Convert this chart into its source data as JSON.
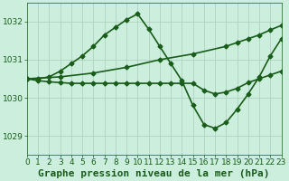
{
  "title": "Graphe pression niveau de la mer (hPa)",
  "bg_color": "#cceedd",
  "grid_color": "#aaccbb",
  "line_color": "#1a5c1a",
  "xlim": [
    0,
    23
  ],
  "ylim": [
    1028.5,
    1032.5
  ],
  "yticks": [
    1029,
    1030,
    1031,
    1032
  ],
  "xticks": [
    0,
    1,
    2,
    3,
    4,
    5,
    6,
    7,
    8,
    9,
    10,
    11,
    12,
    13,
    14,
    15,
    16,
    17,
    18,
    19,
    20,
    21,
    22,
    23
  ],
  "series": [
    {
      "x": [
        0,
        1,
        2,
        3,
        4,
        5,
        6,
        7,
        8,
        9,
        10,
        11,
        12,
        13,
        14,
        15,
        16,
        17,
        18,
        19,
        20,
        21,
        22,
        23
      ],
      "y": [
        1030.5,
        1030.5,
        1030.55,
        1030.7,
        1030.9,
        1031.1,
        1031.35,
        1031.65,
        1031.85,
        1032.05,
        1032.2,
        1031.8,
        1031.35,
        1030.9,
        1030.45,
        1029.8,
        1029.3,
        1029.2,
        1029.35,
        1029.7,
        1030.1,
        1030.55,
        1031.1,
        1031.55
      ]
    },
    {
      "x": [
        0,
        3,
        6,
        9,
        12,
        15,
        18,
        19,
        20,
        21,
        22,
        23
      ],
      "y": [
        1030.5,
        1030.55,
        1030.65,
        1030.8,
        1031.0,
        1031.15,
        1031.35,
        1031.45,
        1031.55,
        1031.65,
        1031.78,
        1031.9
      ]
    },
    {
      "x": [
        0,
        1,
        2,
        3,
        4,
        5,
        6,
        7,
        8,
        9,
        10,
        11,
        12,
        13,
        14,
        15,
        16,
        17,
        18,
        19,
        20,
        21,
        22,
        23
      ],
      "y": [
        1030.5,
        1030.45,
        1030.42,
        1030.4,
        1030.38,
        1030.38,
        1030.38,
        1030.38,
        1030.38,
        1030.38,
        1030.38,
        1030.38,
        1030.38,
        1030.38,
        1030.38,
        1030.38,
        1030.2,
        1030.1,
        1030.15,
        1030.25,
        1030.4,
        1030.5,
        1030.6,
        1030.7
      ]
    }
  ],
  "title_fontsize": 8,
  "tick_fontsize": 6.5,
  "title_color": "#1a5c1a",
  "tick_color": "#1a5c1a",
  "marker": "D",
  "markersize": 2.5,
  "lw": 1.2
}
